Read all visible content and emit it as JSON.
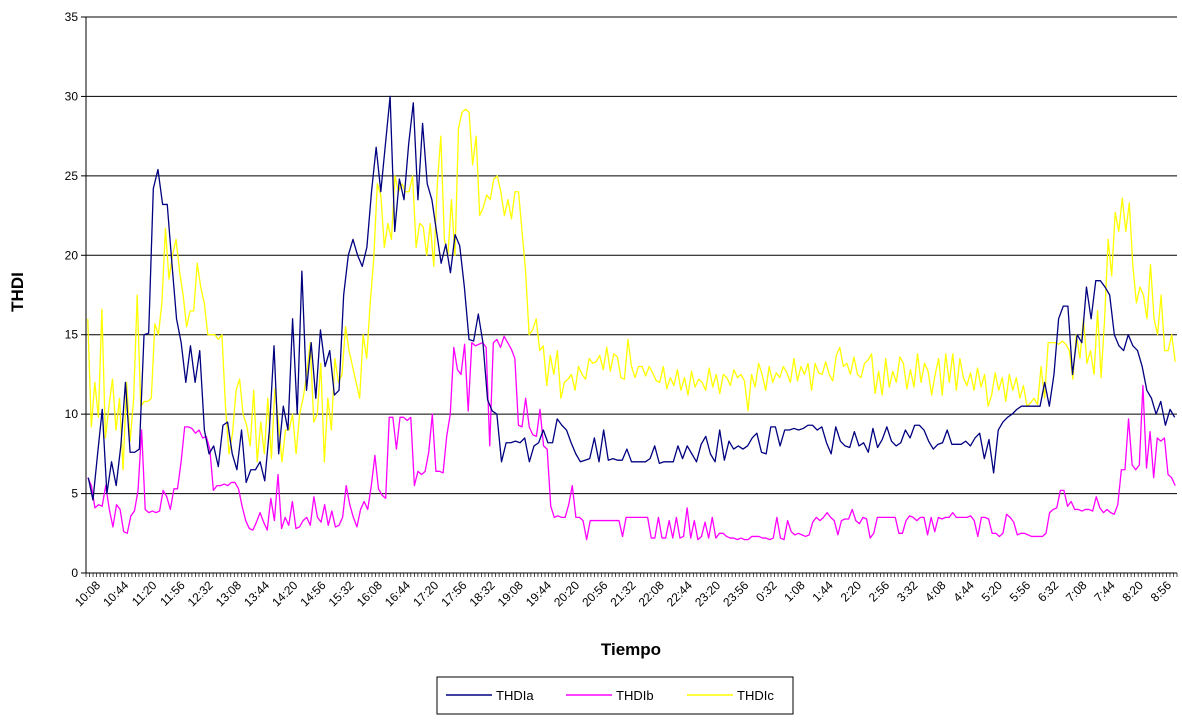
{
  "chart_data": {
    "type": "line",
    "title": "",
    "xlabel": "Tiempo",
    "ylabel": "THDI",
    "ylim": [
      0,
      35
    ],
    "yticks": [
      0,
      5,
      10,
      15,
      20,
      25,
      30,
      35
    ],
    "grid": "horizontal",
    "legend_position": "bottom",
    "x_tick_labels": [
      "10:08",
      "10:44",
      "11:20",
      "11:56",
      "12:32",
      "13:08",
      "13:44",
      "14:20",
      "14:56",
      "15:32",
      "16:08",
      "16:44",
      "17:20",
      "17:56",
      "18:32",
      "19:08",
      "19:44",
      "20:20",
      "20:56",
      "21:32",
      "22:08",
      "22:44",
      "23:20",
      "23:56",
      "0:32",
      "1:08",
      "1:44",
      "2:20",
      "2:56",
      "3:32",
      "4:08",
      "4:44",
      "5:20",
      "5:56",
      "6:32",
      "7:08",
      "7:44",
      "8:20",
      "8:56"
    ],
    "series": [
      {
        "name": "THDIa",
        "color": "#000080",
        "values": [
          6,
          4.6,
          7.5,
          10.3,
          5,
          7,
          5.5,
          8,
          12,
          7.6,
          7.6,
          7.8,
          15,
          15.1,
          24.2,
          25.4,
          23.2,
          23.2,
          19.5,
          16,
          14.5,
          12,
          14.3,
          12,
          14,
          9,
          7.5,
          8,
          6.7,
          9.3,
          9.5,
          7.5,
          6.5,
          9,
          5.7,
          6.5,
          6.5,
          7,
          5.8,
          9,
          14.3,
          7.5,
          10.5,
          9,
          16,
          10,
          19,
          11.5,
          14.5,
          11,
          15.3,
          13,
          14,
          11.2,
          11.5,
          17.5,
          20,
          21,
          20,
          19.3,
          20.5,
          24,
          26.8,
          24,
          27,
          30,
          21.5,
          24.8,
          23.5,
          27,
          29.6,
          23.5,
          28.3,
          24.5,
          23.5,
          21.5,
          19.5,
          20.7,
          18.9,
          21.3,
          20.6,
          18,
          14.7,
          14.6,
          16.3,
          14.5,
          10.9,
          10.2,
          10,
          7,
          8.2,
          8.2,
          8.3,
          8.2,
          8.5,
          7,
          8,
          8.2,
          9,
          8.2,
          8.2,
          9.7,
          9.3,
          9,
          8.2,
          7.5,
          7,
          7.1,
          7.2,
          8.5,
          7,
          9,
          7.1,
          7.2,
          7.1,
          7.1,
          7.8,
          7,
          7,
          7,
          7,
          7.2,
          8,
          6.9,
          7,
          7,
          7,
          8,
          7.2,
          8,
          7.5,
          7,
          8.1,
          8.6,
          7.5,
          7,
          9,
          7.1,
          8.3,
          7.8,
          8,
          7.8,
          8,
          8.5,
          8.8,
          7.6,
          7.5,
          9.2,
          9.2,
          8,
          9,
          9,
          9.1,
          9,
          9.1,
          9.3,
          9.3,
          9,
          9.2,
          8.2,
          7.5,
          9.2,
          8.3,
          8,
          7.9,
          8.9,
          8,
          8.2,
          7.6,
          9.1,
          7.9,
          8.4,
          9.2,
          8.3,
          8,
          8.2,
          9,
          8.5,
          9.3,
          9.3,
          9,
          8.3,
          7.8,
          8.1,
          8.2,
          9,
          8.1,
          8.1,
          8.1,
          8.3,
          8,
          8.5,
          8.8,
          7.2,
          8.4,
          6.3,
          9,
          9.5,
          9.8,
          10,
          10.3,
          10.5,
          10.5,
          10.5,
          10.5,
          10.5,
          12,
          10.5,
          12.5,
          16,
          16.8,
          16.8,
          12.5,
          15,
          14.5,
          18,
          16,
          18.4,
          18.4,
          18,
          17.5,
          15,
          14.3,
          14,
          15,
          14.3,
          14,
          13,
          11.5,
          11,
          10,
          10.8,
          9.3,
          10.3,
          9.8
        ]
      },
      {
        "name": "THDIb",
        "color": "#FF00FF",
        "values": [
          6,
          5.5,
          4.1,
          4.3,
          4.2,
          5.5,
          4,
          2.9,
          4.3,
          4,
          2.6,
          2.5,
          3.6,
          3.9,
          5.2,
          9,
          4,
          3.8,
          3.9,
          3.8,
          3.9,
          5.2,
          4.8,
          4,
          5.3,
          5.3,
          7,
          9.2,
          9.2,
          9.1,
          8.8,
          9,
          8.5,
          8.6,
          7.8,
          5.2,
          5.5,
          5.5,
          5.6,
          5.5,
          5.7,
          5.7,
          5.3,
          4.2,
          3.3,
          2.8,
          2.7,
          3.2,
          3.8,
          3.2,
          2.7,
          4.7,
          3.3,
          6.2,
          2.8,
          3.5,
          3,
          4.5,
          2.8,
          2.9,
          3.3,
          3.5,
          3,
          4.8,
          3.5,
          3.2,
          4.3,
          3,
          3.9,
          2.9,
          3,
          3.5,
          5.5,
          4.3,
          3.5,
          2.9,
          4,
          4.5,
          4,
          5.5,
          7.4,
          5.3,
          4.9,
          4.7,
          9.8,
          9.8,
          7.8,
          9.8,
          9.8,
          9.6,
          9.8,
          5.5,
          6.4,
          6.2,
          6.4,
          7.6,
          10,
          6.4,
          6.4,
          6.3,
          8.6,
          10,
          14.2,
          12.8,
          12.5,
          14.4,
          10.2,
          14.5,
          14.3,
          14.4,
          14.5,
          14.2,
          8,
          14.5,
          14.7,
          14.2,
          14.9,
          14.5,
          14.1,
          13.5,
          9.3,
          9.2,
          11,
          9.2,
          8.7,
          8.6,
          10.3,
          8,
          7.8,
          4.2,
          3.5,
          3.6,
          3.5,
          3.5,
          4.3,
          5.5,
          3.5,
          3.5,
          3.3,
          2.1,
          3.3,
          3.3,
          3.3,
          3.3,
          3.3,
          3.3,
          3.3,
          3.3,
          3.3,
          2.3,
          3.5,
          3.5,
          3.5,
          3.5,
          3.5,
          3.5,
          3.5,
          2.2,
          2.2,
          3.5,
          2.2,
          2.2,
          3.3,
          2.2,
          3.5,
          2.2,
          2.3,
          4.1,
          2.2,
          3.3,
          2.1,
          2.3,
          3.2,
          2.2,
          3.5,
          2.2,
          2.5,
          2.5,
          2.3,
          2.2,
          2.2,
          2.1,
          2.2,
          2.1,
          2.1,
          2.3,
          2.3,
          2.3,
          2.2,
          2.2,
          2.1,
          2.2,
          3.5,
          2.2,
          2.1,
          3.3,
          2.6,
          2.4,
          2.5,
          2.4,
          2.3,
          2.4,
          3.2,
          3.5,
          3.3,
          3.5,
          3.8,
          3.5,
          3.3,
          2.4,
          3.3,
          3.4,
          3.4,
          4,
          3.3,
          3.1,
          3.5,
          3.4,
          2.2,
          2.5,
          3.5,
          3.5,
          3.5,
          3.5,
          3.5,
          3.5,
          2.5,
          2.5,
          3.3,
          3.6,
          3.5,
          3.3,
          3.5,
          3.5,
          2.4,
          3.5,
          2.6,
          3.5,
          3.4,
          3.5,
          3.5,
          3.8,
          3.5,
          3.5,
          3.5,
          3.5,
          3.6,
          3.3,
          2.3,
          3.5,
          3.5,
          3.4,
          2.5,
          2.5,
          2.3,
          2.5,
          3.7,
          3.5,
          3.2,
          2.4,
          2.5,
          2.5,
          2.4,
          2.3,
          2.3,
          2.3,
          2.3,
          2.5,
          3.8,
          4,
          4.1,
          5.2,
          5.2,
          4.2,
          4.5,
          4,
          4,
          3.9,
          4,
          4,
          3.9,
          4.8,
          4.1,
          3.8,
          4,
          3.8,
          3.7,
          4.3,
          6.5,
          6.5,
          9.7,
          6.8,
          6.5,
          6.8,
          11.8,
          6.6,
          8.9,
          6,
          8.5,
          8.3,
          8.5,
          6.2,
          6,
          5.5
        ]
      },
      {
        "name": "THDIc",
        "color": "#FFFF00",
        "values": [
          16,
          9.2,
          12,
          9.8,
          16.6,
          8.5,
          10.5,
          12.2,
          9,
          11,
          6.5,
          12,
          8.3,
          11,
          17.5,
          10.5,
          10.8,
          10.8,
          11,
          15.7,
          15,
          17,
          21.7,
          18.5,
          20,
          21,
          19,
          17.5,
          15.5,
          16.5,
          16.5,
          19.5,
          18,
          17,
          15,
          15,
          15,
          14.7,
          15,
          10.5,
          7.5,
          8.8,
          11.5,
          12.2,
          10,
          9.3,
          8,
          11.5,
          7,
          9.5,
          7.5,
          11,
          7.2,
          11.6,
          9.5,
          7,
          9,
          9,
          10,
          7.5,
          10,
          11,
          12.5,
          14.5,
          9.5,
          10,
          13.2,
          7,
          11,
          9,
          13.5,
          12,
          12.5,
          15.5,
          14,
          13,
          12,
          11,
          15,
          13.5,
          17,
          19.8,
          24.5,
          23.8,
          20.5,
          22,
          21,
          25,
          24,
          24.5,
          24,
          24,
          25,
          20.5,
          22,
          21.8,
          20,
          22,
          19.3,
          24.5,
          27.5,
          21,
          20,
          23.5,
          20,
          28,
          29,
          29.2,
          29,
          25.7,
          27.5,
          22.5,
          23,
          23.8,
          23.5,
          24.8,
          25,
          24,
          22.5,
          23.5,
          22.3,
          24,
          24,
          21.5,
          19,
          15,
          15.3,
          16,
          14,
          14.3,
          11.8,
          13.7,
          12.5,
          14,
          11,
          12,
          12.2,
          12.5,
          11.5,
          13,
          12.5,
          12.2,
          13.5,
          13.2,
          13.3,
          13.7,
          12.8,
          14.2,
          12.7,
          13.8,
          13.6,
          12.3,
          12.2,
          14.7,
          13,
          12.3,
          13,
          13,
          12.4,
          13,
          12.6,
          12.1,
          12,
          13,
          11.6,
          12.3,
          11.8,
          12.8,
          11.5,
          12.3,
          11.2,
          12.7,
          11.7,
          12.2,
          12,
          11.5,
          12.9,
          11.7,
          12.5,
          11.3,
          12.5,
          12.3,
          11.8,
          12.8,
          12.3,
          12.5,
          12.1,
          10.2,
          12.5,
          11.7,
          13.2,
          12.5,
          11.5,
          13,
          12,
          12.6,
          12.3,
          13,
          12.6,
          12,
          13.5,
          12.1,
          13,
          12.5,
          13.2,
          11.5,
          13.2,
          12.6,
          12.5,
          13.3,
          12.5,
          12.1,
          13.7,
          14.2,
          13,
          13.2,
          12.5,
          13.6,
          12.5,
          12.3,
          13.2,
          13.4,
          13.8,
          11.3,
          12.7,
          11.2,
          13.5,
          11.7,
          12.7,
          12,
          13.6,
          13.2,
          11.6,
          12.8,
          11.7,
          13.8,
          12,
          13.2,
          12.7,
          11.2,
          12.5,
          13.5,
          11.2,
          13.8,
          12,
          13.8,
          11.5,
          13.5,
          12.3,
          11.8,
          12.6,
          11.5,
          12.9,
          11.7,
          12.5,
          10.5,
          11.2,
          12.6,
          11.5,
          12.3,
          10.8,
          12.5,
          11.5,
          12.3,
          11,
          11.8,
          10.5,
          10.7,
          11,
          10.6,
          13,
          11,
          14.5,
          14.5,
          14.5,
          14.4,
          14.6,
          14.4,
          14,
          12.2,
          15,
          13.5,
          16,
          13.2,
          14,
          12.5,
          16.5,
          12.3,
          16,
          21,
          18.7,
          22.7,
          21.5,
          23.6,
          21.5,
          23.3,
          19.3,
          17,
          18,
          17.5,
          16,
          19.4,
          16,
          15,
          17.5,
          14,
          14,
          15,
          13.3
        ]
      }
    ]
  }
}
